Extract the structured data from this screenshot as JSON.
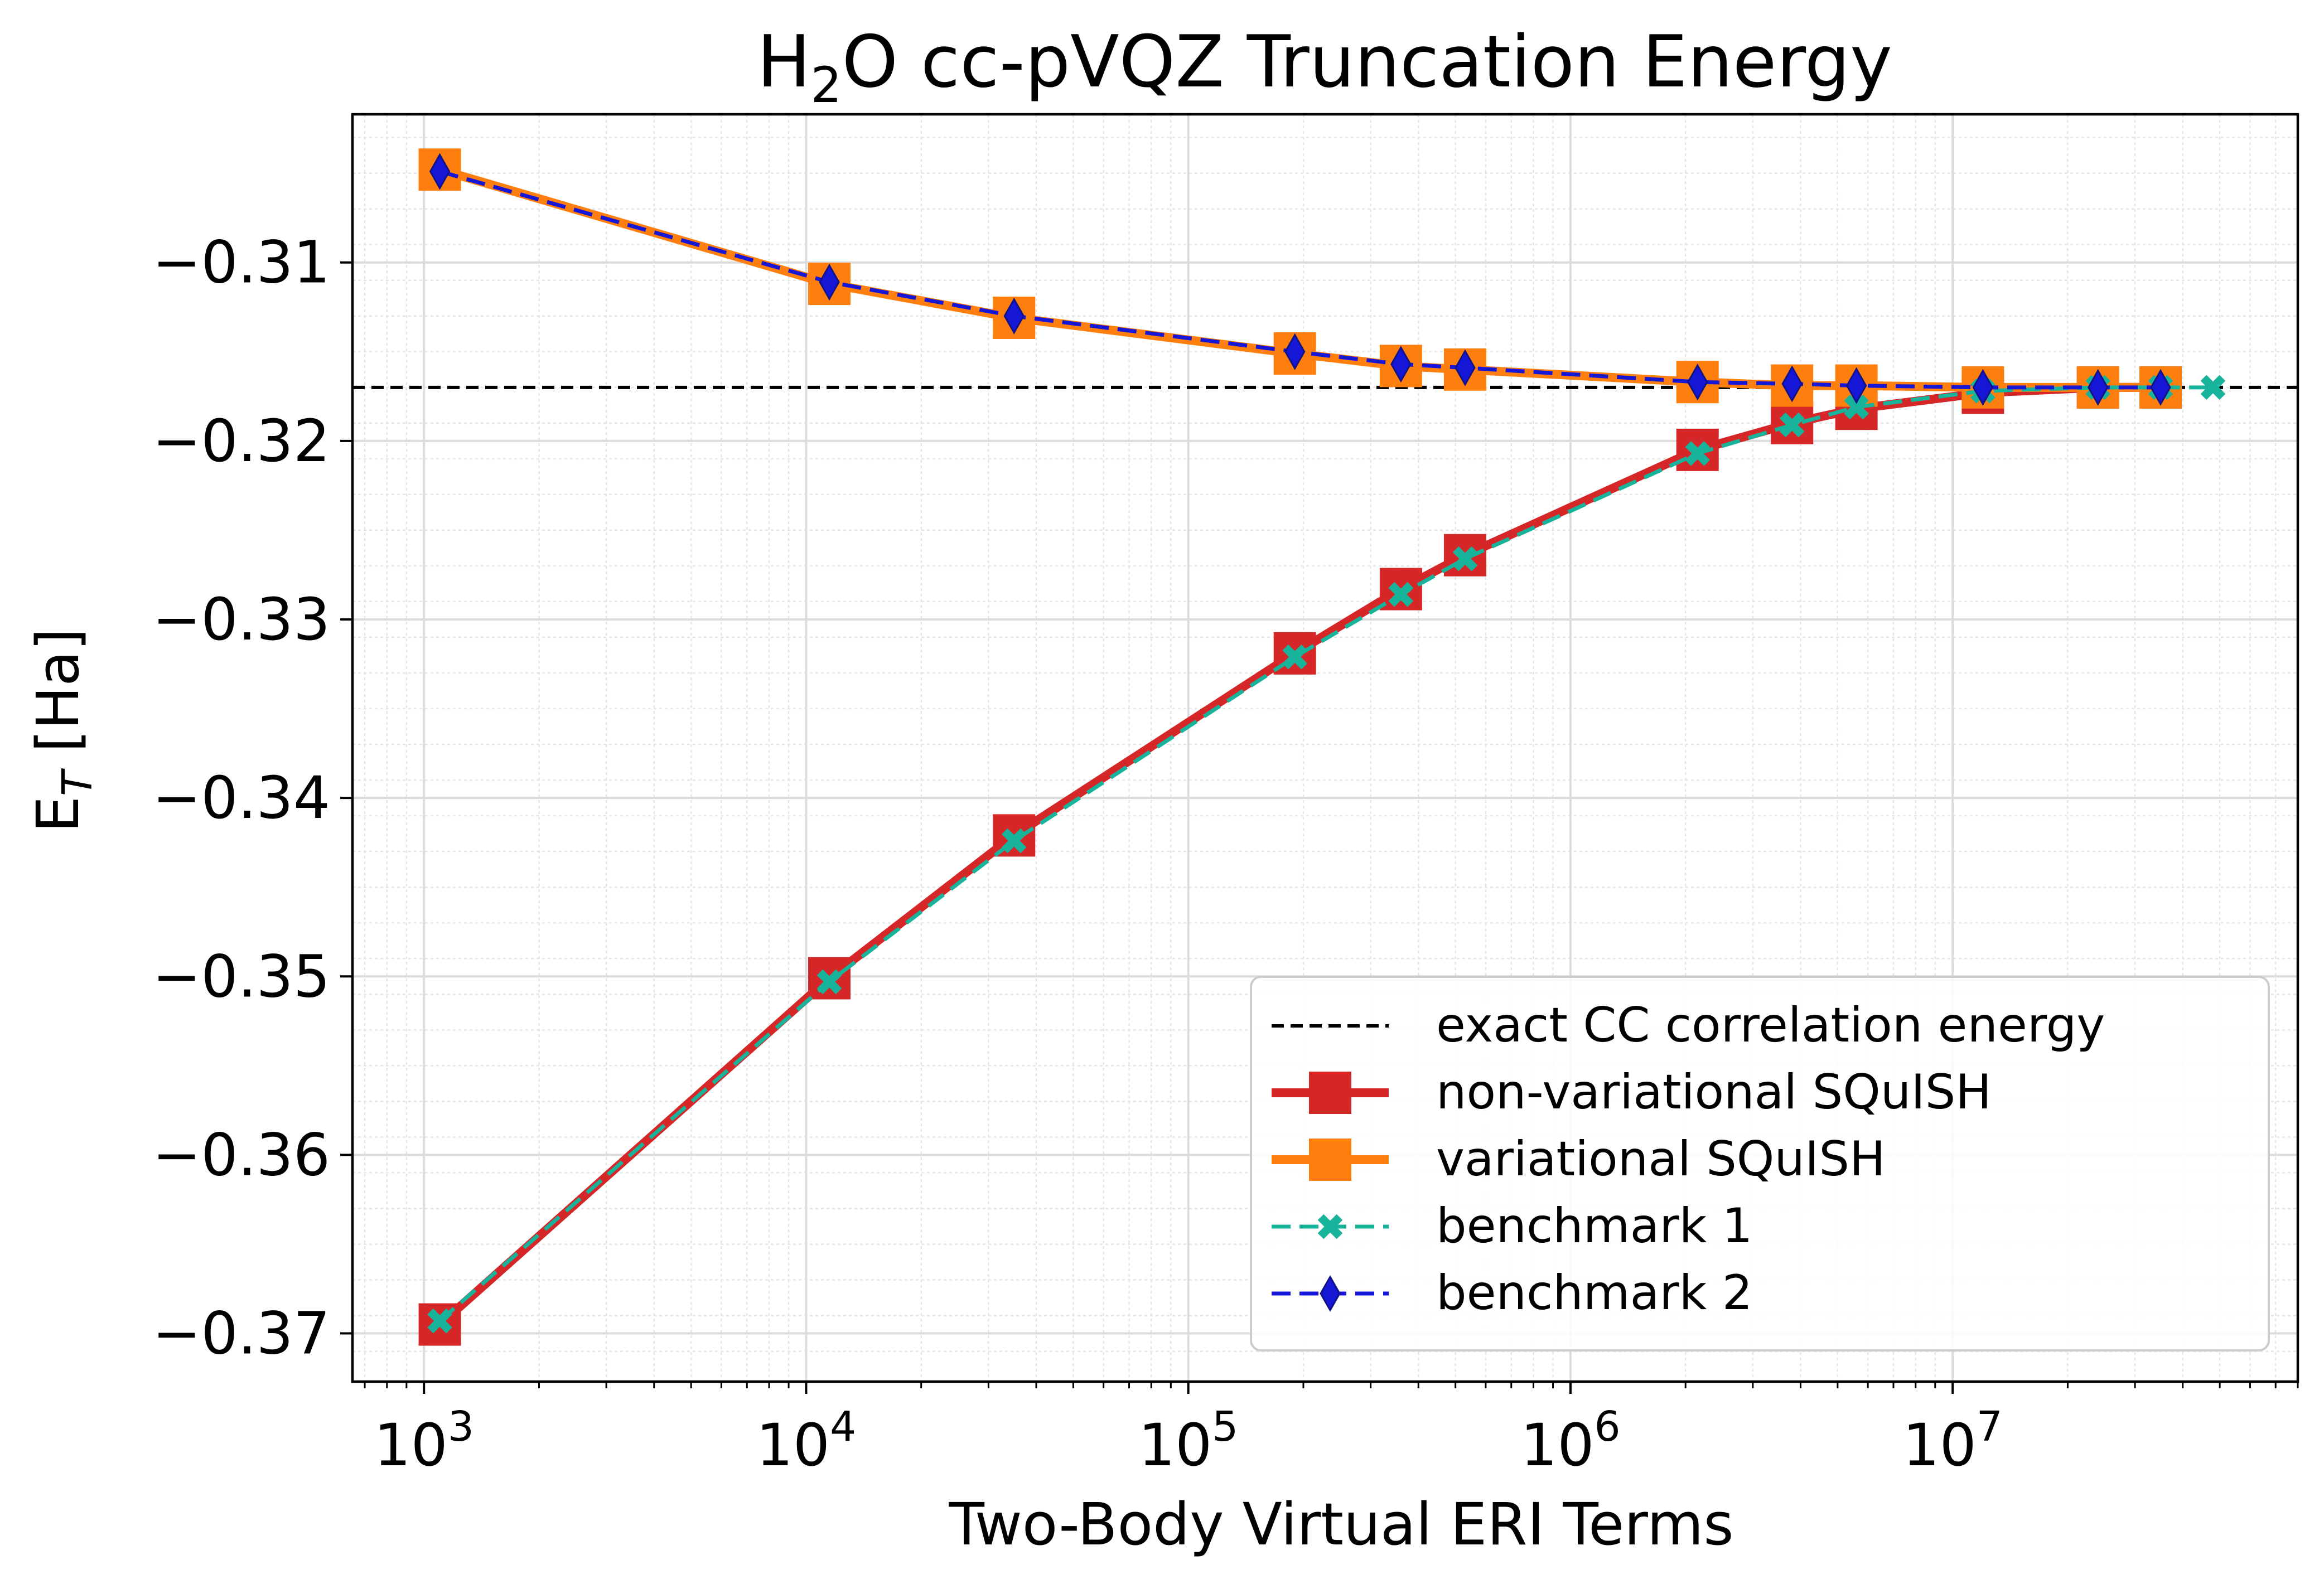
{
  "chart_data": {
    "type": "line",
    "title": {
      "main": "H",
      "sub1": "2",
      "rest": "O cc-pVQZ Truncation Energy"
    },
    "xlabel": "Two-Body Virtual ERI Terms",
    "ylabel": {
      "main": "E",
      "sub": "T",
      "unit": " [Ha]"
    },
    "xscale": "log",
    "xlim": [
      650,
      80000000
    ],
    "ylim": [
      -0.3727,
      -0.3017
    ],
    "x_ticks": [
      {
        "value": 1000,
        "base": "10",
        "exp": "3"
      },
      {
        "value": 10000,
        "base": "10",
        "exp": "4"
      },
      {
        "value": 100000,
        "base": "10",
        "exp": "5"
      },
      {
        "value": 1000000,
        "base": "10",
        "exp": "6"
      },
      {
        "value": 10000000,
        "base": "10",
        "exp": "7"
      }
    ],
    "y_ticks": [
      {
        "value": -0.31,
        "label": "−0.31"
      },
      {
        "value": -0.32,
        "label": "−0.32"
      },
      {
        "value": -0.33,
        "label": "−0.33"
      },
      {
        "value": -0.34,
        "label": "−0.34"
      },
      {
        "value": -0.35,
        "label": "−0.35"
      },
      {
        "value": -0.36,
        "label": "−0.36"
      },
      {
        "value": -0.37,
        "label": "−0.37"
      }
    ],
    "grid": true,
    "reference_line": {
      "name": "exact CC correlation energy",
      "y": -0.317,
      "color": "#000000",
      "style": "dashed"
    },
    "series": [
      {
        "name": "non-variational SQuISH",
        "color": "#d62728",
        "marker": "square",
        "style": "solid",
        "x": [
          1100,
          11500,
          35000,
          190000,
          360000,
          530000,
          2150000,
          3800000,
          5600000,
          12000000,
          24000000,
          35000000
        ],
        "y": [
          -0.3695,
          -0.3501,
          -0.3421,
          -0.3319,
          -0.3283,
          -0.3264,
          -0.3205,
          -0.319,
          -0.3182,
          -0.3173,
          -0.317,
          -0.317
        ]
      },
      {
        "name": "variational SQuISH",
        "color": "#ff7f0e",
        "marker": "square",
        "style": "solid",
        "x": [
          1100,
          11500,
          35000,
          190000,
          360000,
          530000,
          2150000,
          3800000,
          5600000,
          12000000,
          24000000,
          35000000
        ],
        "y": [
          -0.3048,
          -0.3112,
          -0.3131,
          -0.3151,
          -0.3158,
          -0.316,
          -0.3167,
          -0.3169,
          -0.3169,
          -0.317,
          -0.317,
          -0.317
        ]
      },
      {
        "name": "benchmark 1",
        "color": "#17b39b",
        "marker": "x",
        "style": "dashed",
        "x": [
          1100,
          11500,
          35000,
          190000,
          360000,
          530000,
          2150000,
          3800000,
          5600000,
          12000000,
          24000000,
          35000000,
          48000000
        ],
        "y": [
          -0.3693,
          -0.3503,
          -0.3424,
          -0.3321,
          -0.3286,
          -0.3266,
          -0.3207,
          -0.3191,
          -0.3181,
          -0.3172,
          -0.317,
          -0.317,
          -0.317
        ]
      },
      {
        "name": "benchmark 2",
        "color": "#1616d6",
        "marker": "diamond",
        "style": "dashed",
        "x": [
          1100,
          11500,
          35000,
          190000,
          360000,
          530000,
          2150000,
          3800000,
          5600000,
          12000000,
          24000000,
          35000000
        ],
        "y": [
          -0.3049,
          -0.3111,
          -0.313,
          -0.315,
          -0.3157,
          -0.3159,
          -0.3167,
          -0.3168,
          -0.3169,
          -0.317,
          -0.317,
          -0.317
        ]
      }
    ],
    "legend": {
      "location": "lower-right",
      "entries": [
        "exact CC correlation energy",
        "non-variational SQuISH",
        "variational SQuISH",
        "benchmark 1",
        "benchmark 2"
      ]
    }
  }
}
